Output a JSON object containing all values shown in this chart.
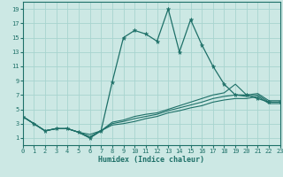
{
  "xlabel": "Humidex (Indice chaleur)",
  "bg_color": "#cce8e4",
  "grid_color": "#a8d4cf",
  "line_color": "#1e7068",
  "xlim": [
    0,
    23
  ],
  "ylim": [
    0,
    20
  ],
  "xticks": [
    0,
    1,
    2,
    3,
    4,
    5,
    6,
    7,
    8,
    9,
    10,
    11,
    12,
    13,
    14,
    15,
    16,
    17,
    18,
    19,
    20,
    21,
    22,
    23
  ],
  "yticks": [
    1,
    3,
    5,
    7,
    9,
    11,
    13,
    15,
    17,
    19
  ],
  "main_series": [
    4,
    3,
    2,
    2.3,
    2.3,
    1.8,
    1.0,
    2.0,
    8.8,
    15.0,
    16.0,
    15.5,
    14.5,
    19.0,
    13.0,
    17.5,
    14.0,
    11.0,
    8.5,
    7.0,
    7.0,
    6.5,
    6.0,
    6.0
  ],
  "line2": [
    4,
    3,
    2,
    2.3,
    2.3,
    1.8,
    1.0,
    2.0,
    3.2,
    3.5,
    4.0,
    4.3,
    4.5,
    5.0,
    5.5,
    6.0,
    6.5,
    7.0,
    7.3,
    8.5,
    7.0,
    7.2,
    6.2,
    6.2
  ],
  "line3": [
    4,
    3,
    2,
    2.3,
    2.3,
    1.8,
    1.2,
    2.0,
    3.0,
    3.3,
    3.7,
    4.0,
    4.3,
    4.8,
    5.2,
    5.6,
    6.0,
    6.5,
    6.8,
    7.0,
    6.8,
    7.0,
    6.0,
    6.0
  ],
  "line4": [
    4,
    3,
    2,
    2.3,
    2.3,
    1.8,
    1.5,
    2.0,
    2.8,
    3.0,
    3.3,
    3.7,
    4.0,
    4.5,
    4.8,
    5.2,
    5.5,
    6.0,
    6.3,
    6.5,
    6.5,
    6.8,
    5.8,
    5.8
  ]
}
